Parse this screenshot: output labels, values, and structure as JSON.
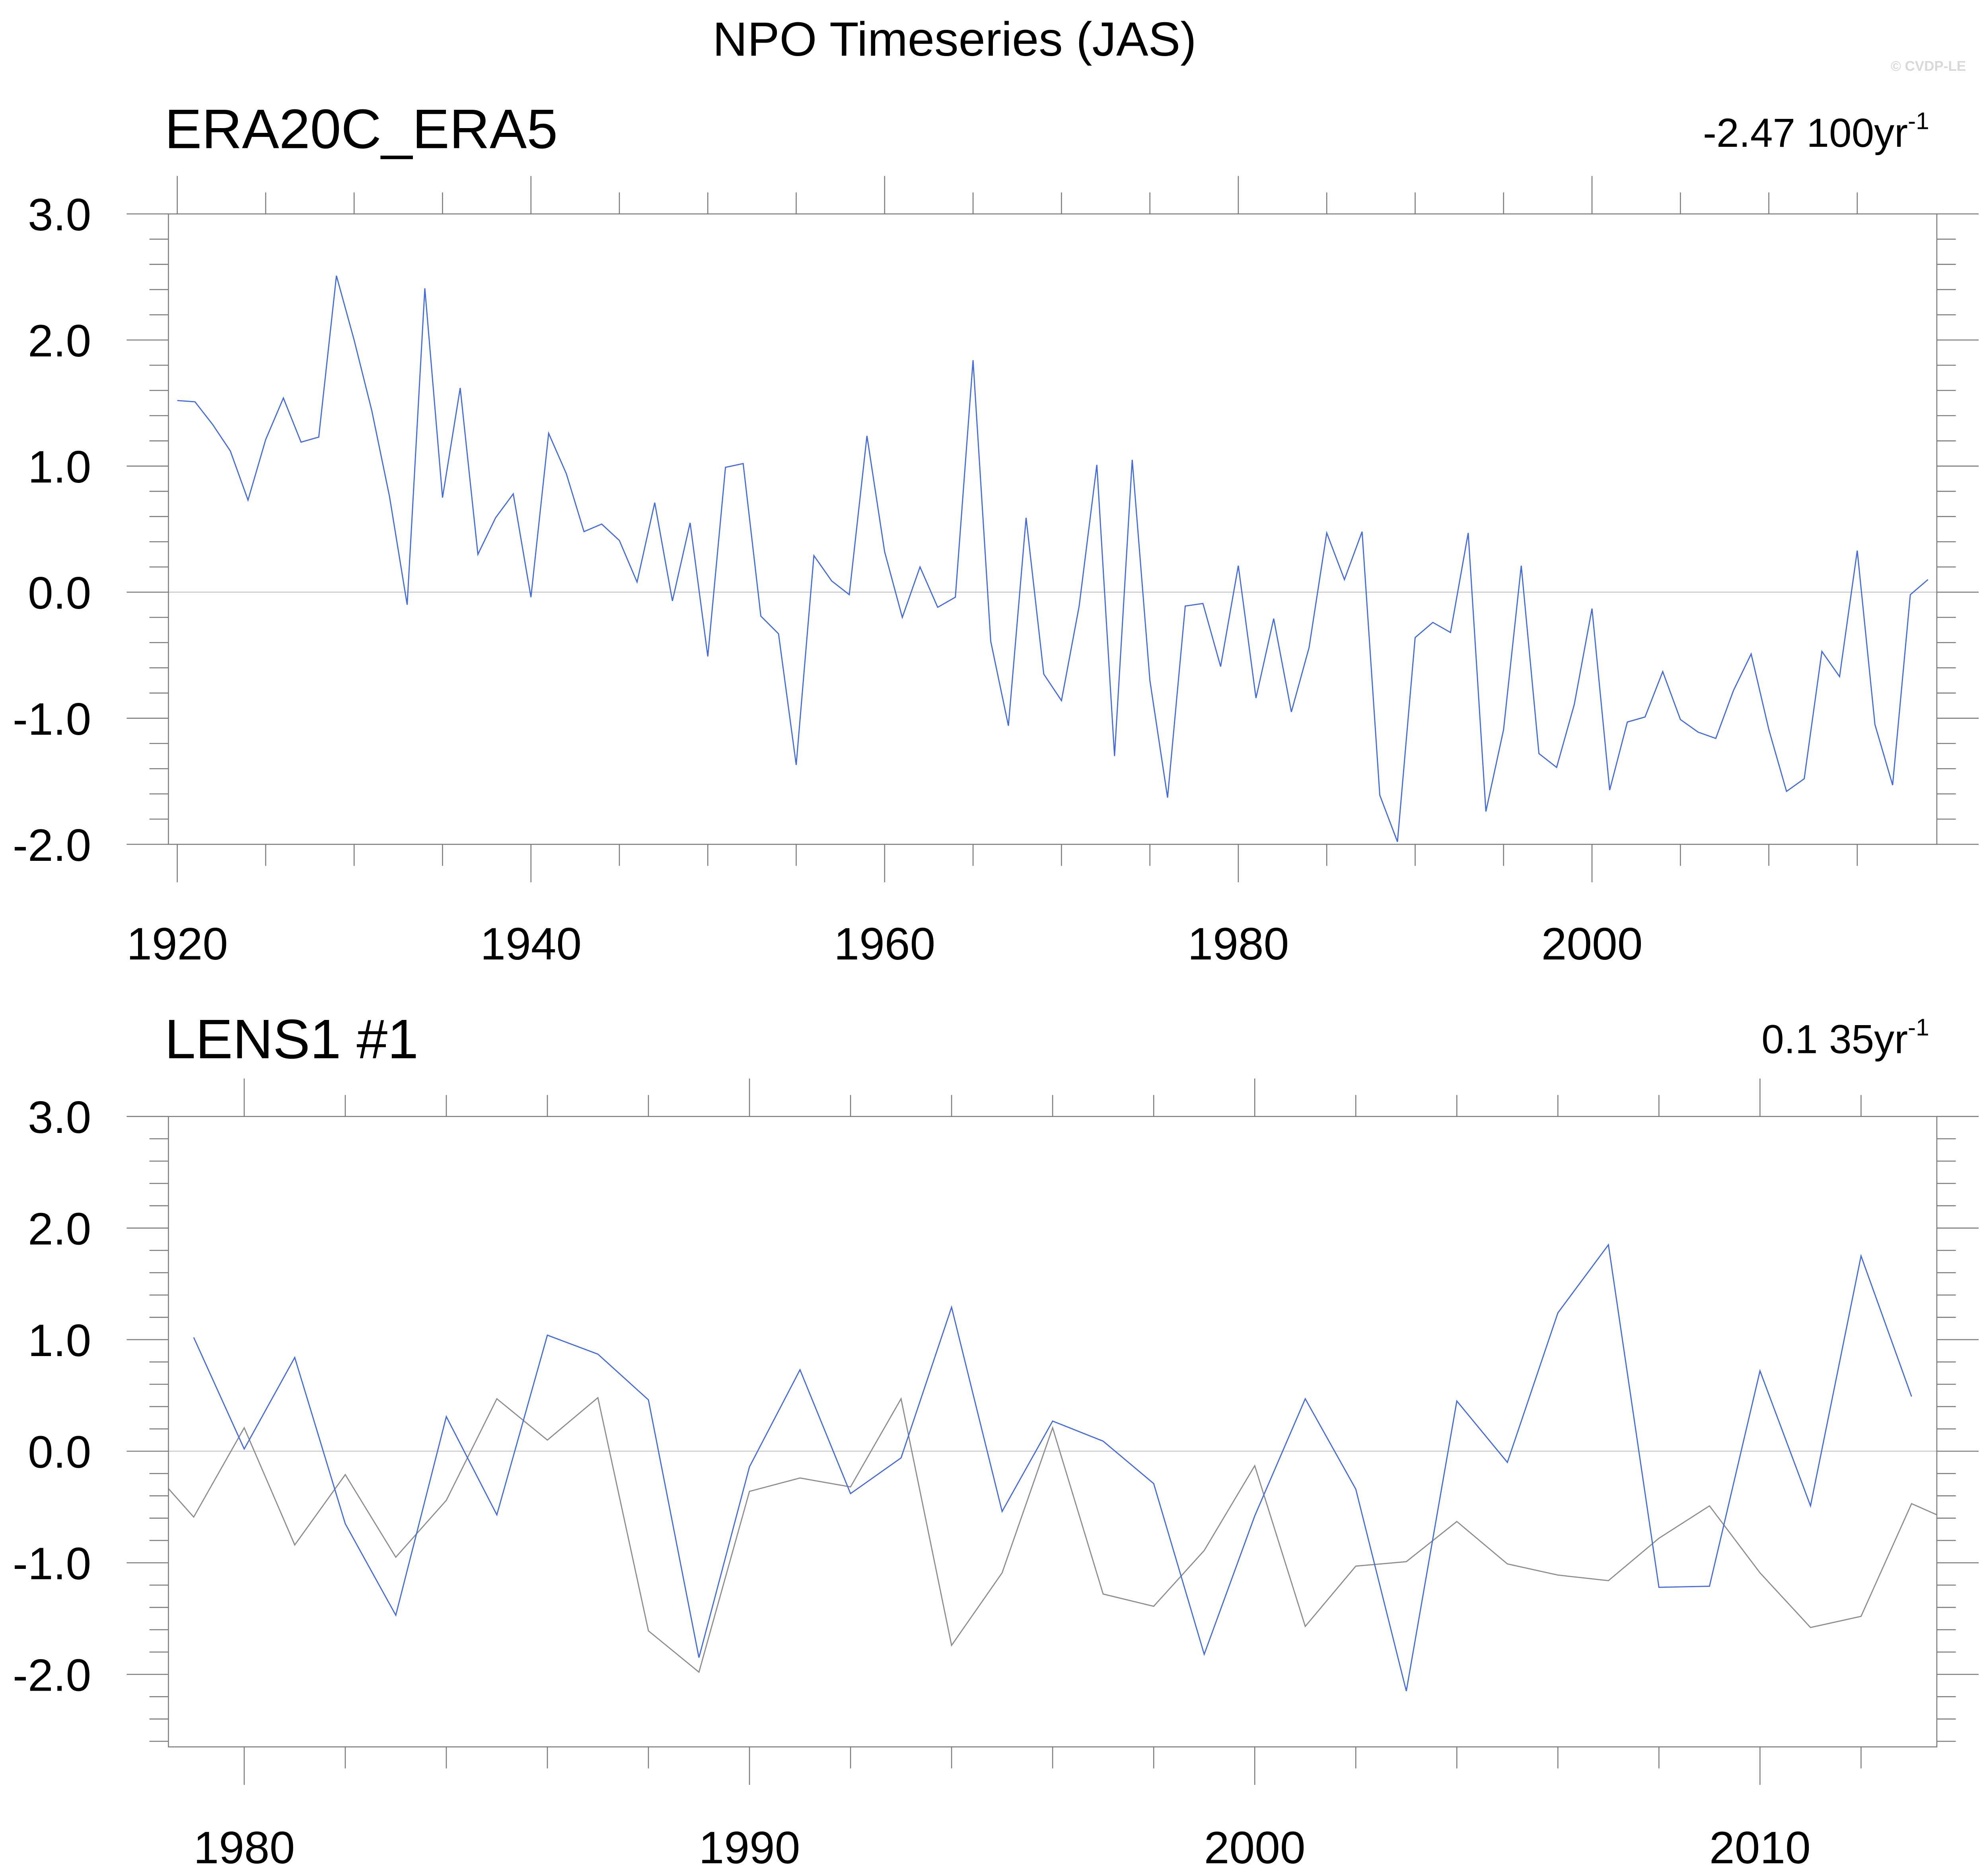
{
  "title": "NPO Timeseries (JAS)",
  "watermark": "© CVDP-LE",
  "colors": {
    "model": "#4169e1",
    "observed": "#8c8c8c",
    "zero_line": "#c8c8c8",
    "lens_title": "#00698f"
  },
  "chart_data": [
    {
      "type": "line",
      "title": "ERA20C_ERA5",
      "title_color": "#000000",
      "trend": {
        "text": "-2.47 100yr",
        "exponent": "-1"
      },
      "xlim": [
        1919.5,
        2019.5
      ],
      "ylim": [
        -2.0,
        3.0
      ],
      "x_ticks": [
        1920,
        1940,
        1960,
        1980,
        2000
      ],
      "x_tick_labels": [
        "1920",
        "1940",
        "1960",
        "1980",
        "2000"
      ],
      "x_minor_step": 5,
      "y_ticks": [
        3.0,
        2.0,
        1.0,
        0.0,
        -1.0,
        -2.0
      ],
      "y_tick_labels": [
        "3.0",
        "2.0",
        "1.0",
        "0.0",
        "-1.0",
        "-2.0"
      ],
      "y_minor_step": 0.2,
      "reference_line": 0,
      "grid": false,
      "series": [
        {
          "color": "#4169e1",
          "x_start": 1920,
          "values": [
            1.52,
            1.51,
            1.33,
            1.12,
            0.73,
            1.21,
            1.54,
            1.19,
            1.23,
            2.51,
            2.0,
            1.44,
            0.76,
            -0.1,
            2.41,
            0.75,
            1.62,
            0.3,
            0.59,
            0.78,
            -0.04,
            1.26,
            0.94,
            0.48,
            0.54,
            0.41,
            0.08,
            0.71,
            -0.07,
            0.55,
            -0.51,
            0.99,
            1.02,
            -0.19,
            -0.33,
            -1.37,
            0.29,
            0.09,
            -0.02,
            1.24,
            0.32,
            -0.2,
            0.2,
            -0.12,
            -0.04,
            1.84,
            -0.39,
            -1.06,
            0.59,
            -0.65,
            -0.86,
            -0.11,
            1.01,
            -1.3,
            1.05,
            -0.7,
            -1.63,
            -0.11,
            -0.09,
            -0.59,
            0.21,
            -0.84,
            -0.21,
            -0.95,
            -0.44,
            0.47,
            0.1,
            0.48,
            -1.61,
            -1.98,
            -0.36,
            -0.24,
            -0.32,
            0.47,
            -1.74,
            -1.09,
            0.21,
            -1.28,
            -1.39,
            -0.89,
            -0.13,
            -1.57,
            -1.03,
            -0.99,
            -0.63,
            -1.01,
            -1.11,
            -1.16,
            -0.78,
            -0.49,
            -1.09,
            -1.58,
            -1.48,
            -0.47,
            -0.67,
            0.33,
            -1.05,
            -1.53,
            -0.02,
            0.1
          ]
        }
      ]
    },
    {
      "type": "line",
      "title": "LENS1 #1",
      "title_color": "#00698f",
      "trend": {
        "text": "0.1 35yr",
        "exponent": "-1"
      },
      "xlim": [
        1978.5,
        2013.5
      ],
      "ylim": [
        -2.65,
        3.0
      ],
      "x_ticks": [
        1980,
        1990,
        2000,
        2010
      ],
      "x_tick_labels": [
        "1980",
        "1990",
        "2000",
        "2010"
      ],
      "x_minor_step": 2,
      "y_ticks": [
        3.0,
        2.0,
        1.0,
        0.0,
        -1.0,
        -2.0
      ],
      "y_tick_labels": [
        "3.0",
        "2.0",
        "1.0",
        "0.0",
        "-1.0",
        "-2.0"
      ],
      "y_minor_step": 0.2,
      "reference_line": 0,
      "grid": false,
      "series": [
        {
          "color": "#8c8c8c",
          "x_start": 1978,
          "values": [
            -0.08,
            -0.59,
            0.21,
            -0.84,
            -0.21,
            -0.95,
            -0.44,
            0.47,
            0.1,
            0.48,
            -1.61,
            -1.98,
            -0.36,
            -0.24,
            -0.32,
            0.47,
            -1.74,
            -1.09,
            0.21,
            -1.28,
            -1.39,
            -0.89,
            -0.13,
            -1.57,
            -1.03,
            -0.99,
            -0.63,
            -1.01,
            -1.11,
            -1.16,
            -0.78,
            -0.49,
            -1.09,
            -1.58,
            -1.48,
            -0.47,
            -0.67
          ]
        },
        {
          "color": "#4169e1",
          "x_start": 1979,
          "values": [
            1.02,
            0.02,
            0.84,
            -0.65,
            -1.47,
            0.31,
            -0.57,
            1.04,
            0.87,
            0.46,
            -1.85,
            -0.14,
            0.73,
            -0.38,
            -0.06,
            1.29,
            -0.54,
            0.27,
            0.09,
            -0.29,
            -1.82,
            -0.58,
            0.47,
            -0.34,
            -2.15,
            0.45,
            -0.1,
            1.24,
            1.85,
            -1.22,
            -1.21,
            0.72,
            -0.49,
            1.75,
            0.49
          ]
        }
      ]
    }
  ]
}
